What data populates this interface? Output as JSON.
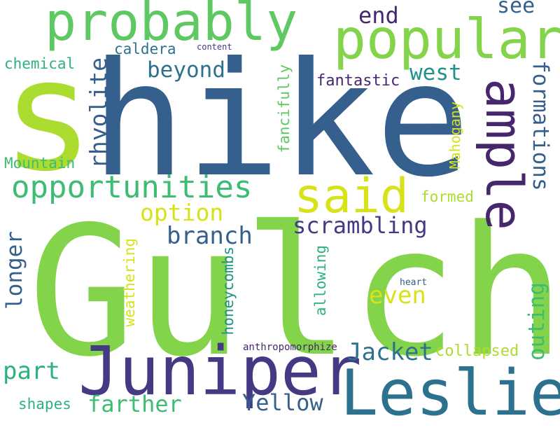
{
  "palette": {
    "dark_purple": "#46276e",
    "indigo": "#443a83",
    "steel_blue": "#355f8d",
    "teal_blue": "#2c728e",
    "teal": "#21918c",
    "sea_green": "#2db27d",
    "green": "#3fbc73",
    "light_green": "#5ec962",
    "yellow_green": "#84d44b",
    "lime": "#addc30",
    "yellow": "#d8e219",
    "bright_yellow": "#e0e31c"
  },
  "words": [
    {
      "text": "Gulch"
    },
    {
      "text": "hike"
    },
    {
      "text": "s"
    },
    {
      "text": "Juniper"
    },
    {
      "text": "Leslie"
    },
    {
      "text": "probably"
    },
    {
      "text": "popular"
    },
    {
      "text": "said"
    },
    {
      "text": "ample"
    },
    {
      "text": "opportunities"
    },
    {
      "text": "formations"
    },
    {
      "text": "scrambling"
    },
    {
      "text": "branch"
    },
    {
      "text": "beyond"
    },
    {
      "text": "option"
    },
    {
      "text": "end"
    },
    {
      "text": "see"
    },
    {
      "text": "west"
    },
    {
      "text": "rhyolite"
    },
    {
      "text": "fantastic"
    },
    {
      "text": "chemical"
    },
    {
      "text": "caldera"
    },
    {
      "text": "content"
    },
    {
      "text": "Mountain"
    },
    {
      "text": "fancifully"
    },
    {
      "text": "Mahogany"
    },
    {
      "text": "formed"
    },
    {
      "text": "longer"
    },
    {
      "text": "even"
    },
    {
      "text": "outing"
    },
    {
      "text": "weathering"
    },
    {
      "text": "honeycombs"
    },
    {
      "text": "allowing"
    },
    {
      "text": "heart"
    },
    {
      "text": "Jacket"
    },
    {
      "text": "collapsed"
    },
    {
      "text": "anthropomorphize"
    },
    {
      "text": "part"
    },
    {
      "text": "farther"
    },
    {
      "text": "Yellow"
    },
    {
      "text": "shapes"
    }
  ]
}
